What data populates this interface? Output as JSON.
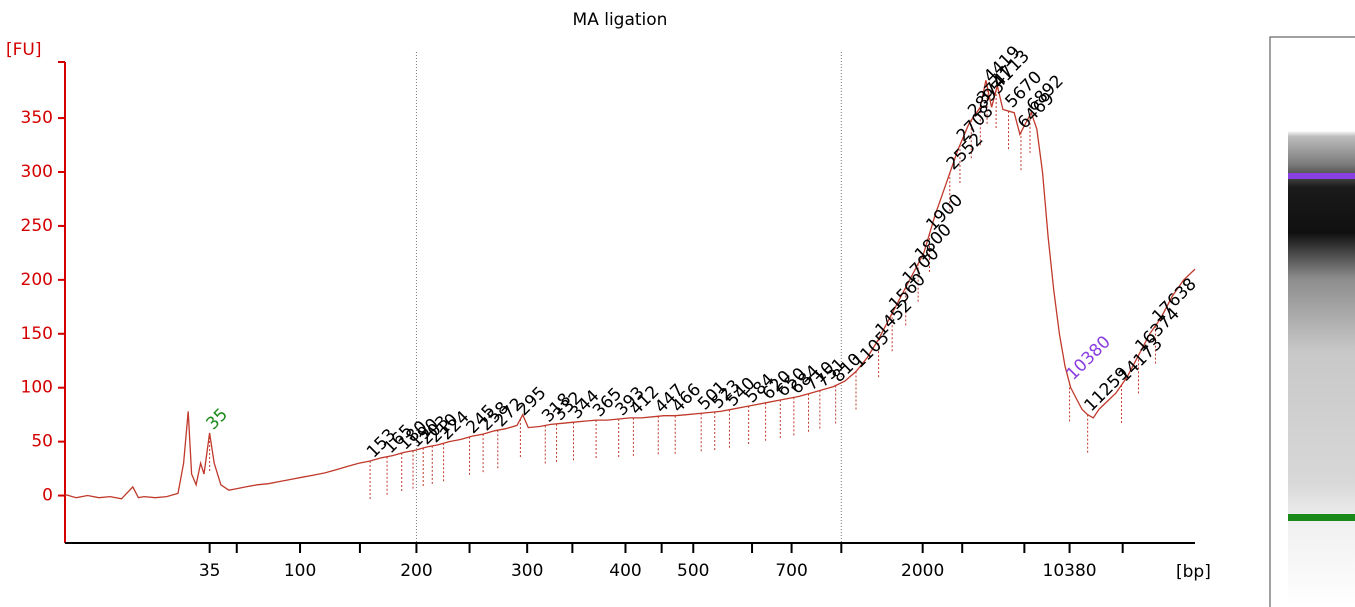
{
  "chart_data": {
    "type": "line",
    "title": "MA ligation",
    "ylabel": "[FU]",
    "xlabel": "[bp]",
    "color": "#c0392b",
    "axis_color": "#d40000",
    "xlim": [
      0,
      100
    ],
    "ylim": [
      -44,
      402
    ],
    "yticks": [
      0,
      50,
      100,
      150,
      200,
      250,
      300,
      350
    ],
    "xticks": [
      {
        "value": 12.8,
        "label": "35"
      },
      {
        "value": 20.8,
        "label": "100"
      },
      {
        "value": 31.1,
        "label": "200"
      },
      {
        "value": 40.9,
        "label": "300"
      },
      {
        "value": 49.6,
        "label": "400"
      },
      {
        "value": 55.6,
        "label": "500"
      },
      {
        "value": 64.3,
        "label": "700"
      },
      {
        "value": 75.9,
        "label": "2000"
      },
      {
        "value": 88.9,
        "label": "10380"
      }
    ],
    "xminorticks": [
      15.2,
      26.1,
      35.8,
      44.9,
      52.8,
      60.8,
      68.7,
      79.4,
      84.9,
      93.6
    ],
    "vlines": [
      31.1,
      68.7
    ],
    "x": [
      0,
      1,
      2,
      3,
      4,
      5,
      6,
      6.5,
      7,
      8,
      9,
      10,
      10.5,
      10.9,
      11.2,
      11.6,
      12,
      12.3,
      12.8,
      13.2,
      13.8,
      14.5,
      15,
      16,
      17,
      18,
      19,
      20,
      21,
      22,
      23,
      24,
      25,
      26,
      27,
      28,
      29,
      30,
      31,
      32,
      33,
      34,
      35,
      36,
      37,
      38,
      39,
      40,
      40.5,
      41,
      42,
      43,
      44,
      45,
      46,
      47,
      48,
      49,
      50,
      51,
      52,
      53,
      54,
      55,
      56,
      57,
      58,
      59,
      60,
      61,
      62,
      63,
      64,
      65,
      66,
      67,
      68,
      69,
      70,
      71,
      72,
      73,
      74,
      75,
      76,
      77,
      78,
      79,
      80,
      81,
      81.5,
      82,
      82.5,
      83,
      84,
      84.5,
      85,
      85.5,
      86,
      86.5,
      87,
      87.5,
      88,
      88.5,
      89,
      89.5,
      90,
      90.5,
      91,
      91.5,
      92,
      93,
      94,
      95,
      96,
      97,
      98,
      99,
      100
    ],
    "values": [
      1,
      -2,
      0,
      -2,
      -1,
      -3,
      8,
      -2,
      -1,
      -2,
      -1,
      2,
      30,
      78,
      20,
      10,
      30,
      20,
      58,
      30,
      10,
      5,
      6,
      8,
      10,
      11,
      13,
      15,
      17,
      19,
      21,
      24,
      27,
      30,
      32,
      35,
      37,
      40,
      42,
      45,
      47,
      50,
      52,
      55,
      57,
      60,
      62,
      65,
      75,
      63,
      64,
      66,
      67,
      68,
      69,
      70,
      70,
      71,
      72,
      72,
      73,
      74,
      74,
      75,
      76,
      77,
      78,
      80,
      82,
      84,
      86,
      88,
      90,
      92,
      95,
      98,
      101,
      106,
      115,
      128,
      145,
      165,
      185,
      205,
      225,
      260,
      290,
      320,
      345,
      360,
      385,
      360,
      380,
      358,
      355,
      335,
      345,
      355,
      340,
      300,
      240,
      190,
      150,
      120,
      100,
      90,
      80,
      75,
      72,
      80,
      85,
      95,
      110,
      130,
      150,
      165,
      185,
      200,
      210
    ],
    "peaks": [
      {
        "label": "35",
        "x": 12.8,
        "color": "#1a8a1a"
      },
      {
        "label": "153",
        "x": 27.0
      },
      {
        "label": "165",
        "x": 28.5
      },
      {
        "label": "180",
        "x": 29.8
      },
      {
        "label": "190",
        "x": 30.8
      },
      {
        "label": "203",
        "x": 31.7
      },
      {
        "label": "210",
        "x": 32.5
      },
      {
        "label": "224",
        "x": 33.5
      },
      {
        "label": "245",
        "x": 35.8
      },
      {
        "label": "258",
        "x": 37.0
      },
      {
        "label": "272",
        "x": 38.3
      },
      {
        "label": "295",
        "x": 40.3
      },
      {
        "label": "318",
        "x": 42.5
      },
      {
        "label": "332",
        "x": 43.5
      },
      {
        "label": "344",
        "x": 45.0
      },
      {
        "label": "365",
        "x": 47.0
      },
      {
        "label": "393",
        "x": 49.0
      },
      {
        "label": "412",
        "x": 50.3
      },
      {
        "label": "447",
        "x": 52.5
      },
      {
        "label": "466",
        "x": 54.0
      },
      {
        "label": "501",
        "x": 56.3
      },
      {
        "label": "523",
        "x": 57.5
      },
      {
        "label": "540",
        "x": 58.8
      },
      {
        "label": "584",
        "x": 60.5
      },
      {
        "label": "620",
        "x": 62.0
      },
      {
        "label": "650",
        "x": 63.3
      },
      {
        "label": "684",
        "x": 64.5
      },
      {
        "label": "710",
        "x": 65.8
      },
      {
        "label": "751",
        "x": 66.8
      },
      {
        "label": "810",
        "x": 68.2
      },
      {
        "label": "1105",
        "x": 70.0
      },
      {
        "label": "1452",
        "x": 72.0
      },
      {
        "label": "1560",
        "x": 73.2
      },
      {
        "label": "1700",
        "x": 74.4
      },
      {
        "label": "1800",
        "x": 75.5
      },
      {
        "label": "1900",
        "x": 76.5
      },
      {
        "label": "2552",
        "x": 78.3
      },
      {
        "label": "2708",
        "x": 79.2
      },
      {
        "label": "2895",
        "x": 80.2
      },
      {
        "label": "3741",
        "x": 81.0
      },
      {
        "label": "4419",
        "x": 81.6
      },
      {
        "label": "4713",
        "x": 82.4
      },
      {
        "label": "5670",
        "x": 83.5
      },
      {
        "label": "6469",
        "x": 84.6
      },
      {
        "label": "6892",
        "x": 85.4
      },
      {
        "label": "10380",
        "x": 88.9,
        "color": "#8a3fe0"
      },
      {
        "label": "11259",
        "x": 90.5
      },
      {
        "label": "14173",
        "x": 93.5
      },
      {
        "label": "16374",
        "x": 95.0
      },
      {
        "label": "17638",
        "x": 96.5
      }
    ]
  }
}
